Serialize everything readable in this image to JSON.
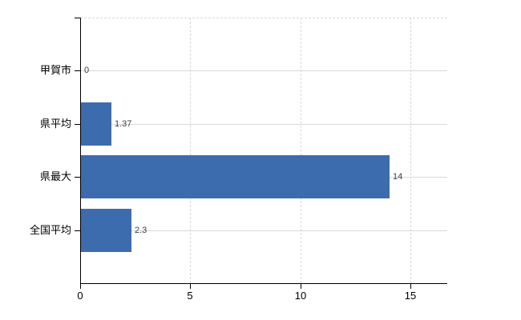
{
  "chart_data": {
    "type": "bar",
    "orientation": "horizontal",
    "title": "",
    "xlabel": "",
    "ylabel": "",
    "categories": [
      "甲賀市",
      "県平均",
      "県最大",
      "全国平均"
    ],
    "values": [
      0,
      1.37,
      14,
      2.3
    ],
    "value_labels": [
      "0",
      "1.37",
      "14",
      "2.3"
    ],
    "x_ticks": [
      0,
      5,
      10,
      15
    ],
    "x_tick_labels": [
      "0",
      "5",
      "10",
      "15"
    ],
    "xlim": [
      0,
      16.7
    ],
    "grid": {
      "horizontal": "solid",
      "vertical": "dashed",
      "top_border": "dashed"
    },
    "legend": "none",
    "colors": {
      "bar": "#3d6cae",
      "gridline": "#d7dad5",
      "axis": "#000000",
      "value_label": "#3c3c3c",
      "background": "#ffffff"
    }
  }
}
